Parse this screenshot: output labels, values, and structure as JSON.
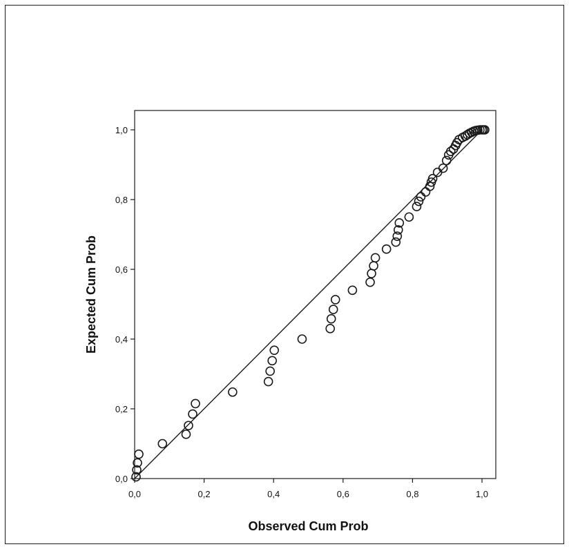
{
  "chart_data": {
    "type": "scatter",
    "title": "",
    "xlabel": "Observed Cum Prob",
    "ylabel": "Expected Cum Prob",
    "xlim": [
      0.0,
      1.0
    ],
    "ylim": [
      0.0,
      1.0
    ],
    "x_ticks": [
      "0,0",
      "0,2",
      "0,4",
      "0,6",
      "0,8",
      "1,0"
    ],
    "y_ticks": [
      "0,0",
      "0,2",
      "0,4",
      "0,6",
      "0,8",
      "1,0"
    ],
    "grid": false,
    "reference_line": {
      "x": [
        0.0,
        1.0
      ],
      "y": [
        0.0,
        1.0
      ]
    },
    "series": [
      {
        "points": [
          [
            0.004,
            0.005
          ],
          [
            0.006,
            0.025
          ],
          [
            0.008,
            0.045
          ],
          [
            0.012,
            0.07
          ],
          [
            0.08,
            0.1
          ],
          [
            0.148,
            0.127
          ],
          [
            0.155,
            0.152
          ],
          [
            0.167,
            0.185
          ],
          [
            0.175,
            0.215
          ],
          [
            0.282,
            0.248
          ],
          [
            0.385,
            0.278
          ],
          [
            0.39,
            0.308
          ],
          [
            0.396,
            0.338
          ],
          [
            0.402,
            0.368
          ],
          [
            0.482,
            0.4
          ],
          [
            0.563,
            0.43
          ],
          [
            0.566,
            0.458
          ],
          [
            0.572,
            0.485
          ],
          [
            0.578,
            0.513
          ],
          [
            0.627,
            0.54
          ],
          [
            0.678,
            0.563
          ],
          [
            0.682,
            0.588
          ],
          [
            0.688,
            0.61
          ],
          [
            0.693,
            0.633
          ],
          [
            0.725,
            0.658
          ],
          [
            0.752,
            0.678
          ],
          [
            0.756,
            0.695
          ],
          [
            0.759,
            0.713
          ],
          [
            0.762,
            0.733
          ],
          [
            0.79,
            0.75
          ],
          [
            0.812,
            0.78
          ],
          [
            0.818,
            0.795
          ],
          [
            0.824,
            0.808
          ],
          [
            0.838,
            0.822
          ],
          [
            0.85,
            0.838
          ],
          [
            0.854,
            0.85
          ],
          [
            0.858,
            0.86
          ],
          [
            0.872,
            0.878
          ],
          [
            0.888,
            0.89
          ],
          [
            0.898,
            0.912
          ],
          [
            0.904,
            0.928
          ],
          [
            0.91,
            0.938
          ],
          [
            0.918,
            0.945
          ],
          [
            0.924,
            0.955
          ],
          [
            0.928,
            0.963
          ],
          [
            0.934,
            0.972
          ],
          [
            0.944,
            0.978
          ],
          [
            0.952,
            0.982
          ],
          [
            0.958,
            0.986
          ],
          [
            0.964,
            0.99
          ],
          [
            0.97,
            0.993
          ],
          [
            0.976,
            0.996
          ],
          [
            0.982,
            0.998
          ],
          [
            0.988,
            0.999
          ],
          [
            0.994,
            1.0
          ],
          [
            1.0,
            1.0
          ],
          [
            1.004,
            1.0
          ],
          [
            1.008,
            1.0
          ]
        ]
      }
    ]
  }
}
